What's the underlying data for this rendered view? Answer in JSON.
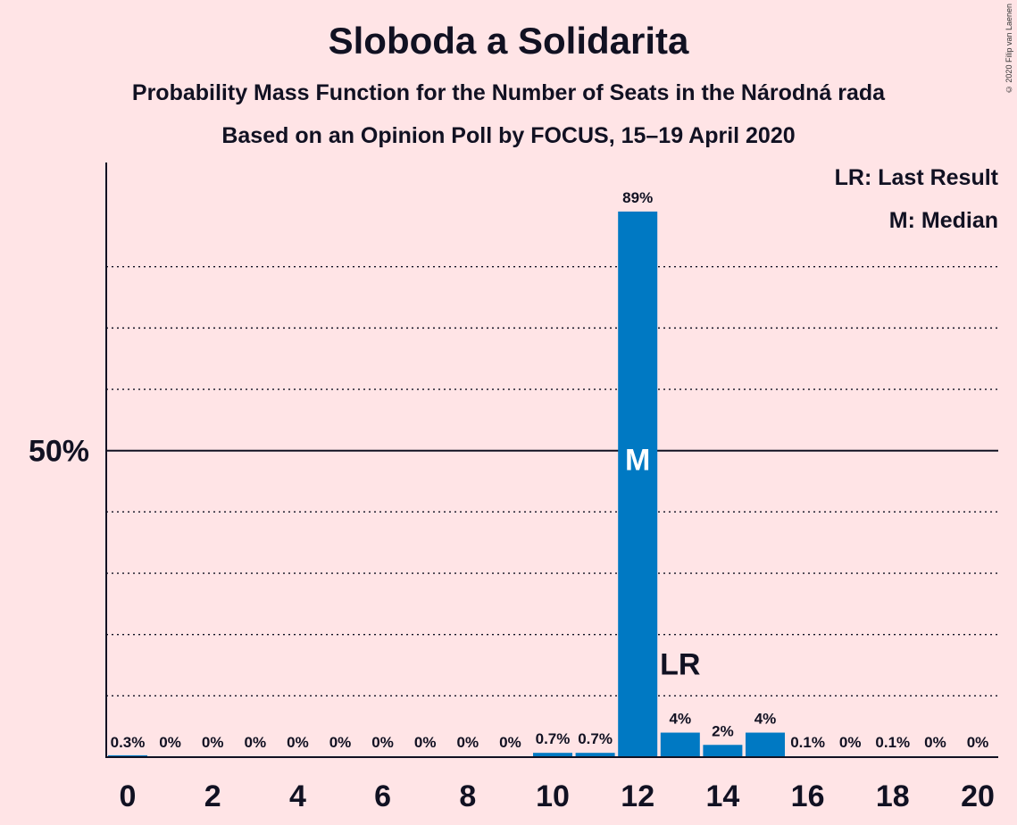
{
  "title": "Sloboda a Solidarita",
  "subtitle": "Probability Mass Function for the Number of Seats in the Národná rada",
  "subtitle2": "Based on an Opinion Poll by FOCUS, 15–19 April 2020",
  "copyright": "© 2020 Filip van Laenen",
  "legend": {
    "last_result": "LR: Last Result",
    "median": "M: Median"
  },
  "colors": {
    "background": "#FFE4E6",
    "bar": "#0079C3",
    "axis": "#111122"
  },
  "chart_data": {
    "type": "bar",
    "x": [
      0,
      1,
      2,
      3,
      4,
      5,
      6,
      7,
      8,
      9,
      10,
      11,
      12,
      13,
      14,
      15,
      16,
      17,
      18,
      19,
      20
    ],
    "values": [
      0.3,
      0,
      0,
      0,
      0,
      0,
      0,
      0,
      0,
      0,
      0.7,
      0.7,
      89,
      4,
      2,
      4,
      0.1,
      0,
      0.1,
      0,
      0
    ],
    "value_labels": [
      "0.3%",
      "0%",
      "0%",
      "0%",
      "0%",
      "0%",
      "0%",
      "0%",
      "0%",
      "0%",
      "0.7%",
      "0.7%",
      "89%",
      "4%",
      "2%",
      "4%",
      "0.1%",
      "0%",
      "0.1%",
      "0%",
      "0%"
    ],
    "x_ticks": [
      0,
      2,
      4,
      6,
      8,
      10,
      12,
      14,
      16,
      18,
      20
    ],
    "y_ticks": [
      {
        "value": 50,
        "label": "50%"
      }
    ],
    "y_gridlines": [
      10,
      20,
      30,
      40,
      50,
      60,
      70,
      80
    ],
    "ylim": [
      0,
      97
    ],
    "median_seat": 12,
    "median_label": "M",
    "last_result_seat": 13,
    "last_result_label": "LR",
    "xlabel": "",
    "ylabel": ""
  }
}
